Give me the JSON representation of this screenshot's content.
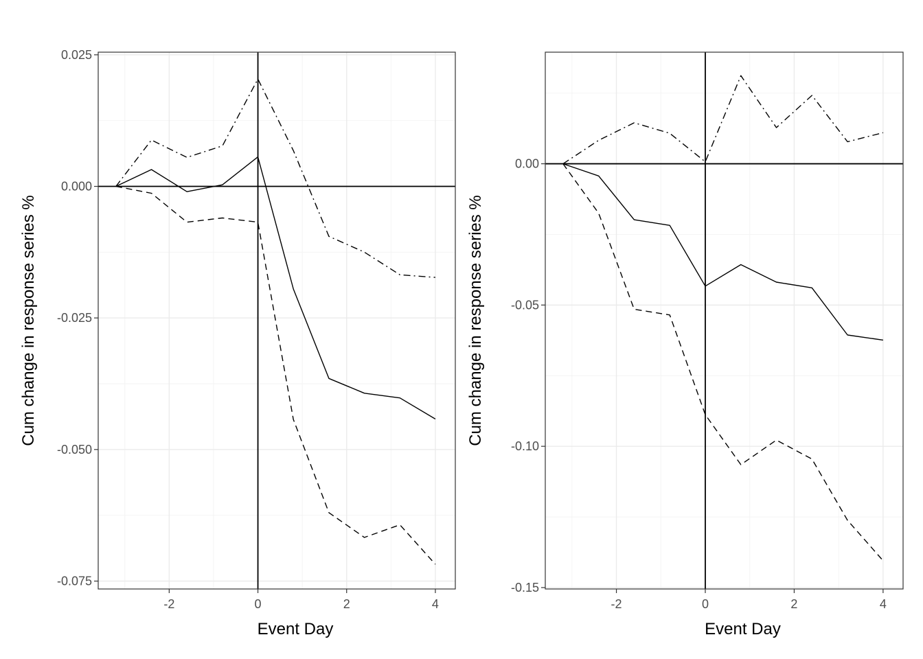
{
  "chart_data": [
    {
      "type": "line",
      "xlabel": "Event Day",
      "ylabel": "Cum change in response series %",
      "xlim": [
        -3.6,
        4.45
      ],
      "ylim": [
        -0.0765,
        0.0255
      ],
      "x_ticks": [
        -2,
        0,
        2,
        4
      ],
      "x_tick_labels": [
        "-2",
        "0",
        "2",
        "4"
      ],
      "y_ticks": [
        0.025,
        0.0,
        -0.025,
        -0.05,
        -0.075
      ],
      "y_tick_labels": [
        "0.025",
        "0.000",
        "-0.025",
        "-0.050",
        "-0.075"
      ],
      "grid": true,
      "reference_lines": {
        "x": 0,
        "y": 0
      },
      "x": [
        -3.2,
        -2.4,
        -1.6,
        -0.8,
        0,
        0.8,
        1.6,
        2.4,
        3.2,
        4.0
      ],
      "series": [
        {
          "style": "solid",
          "values": [
            0.0,
            0.0032,
            -0.001,
            0.0003,
            0.0056,
            -0.0195,
            -0.0365,
            -0.0393,
            -0.0402,
            -0.0442
          ]
        },
        {
          "style": "dashdot",
          "values": [
            0.0,
            0.0088,
            0.0055,
            0.0077,
            0.0204,
            0.0068,
            -0.0095,
            -0.0125,
            -0.0168,
            -0.0173
          ]
        },
        {
          "style": "dashed",
          "values": [
            0.0,
            -0.0013,
            -0.0068,
            -0.006,
            -0.0068,
            -0.0443,
            -0.062,
            -0.0667,
            -0.0643,
            -0.0718
          ]
        }
      ]
    },
    {
      "type": "line",
      "xlabel": "Event Day",
      "ylabel": "Cum change in response series %",
      "xlim": [
        -3.6,
        4.45
      ],
      "ylim": [
        -0.1505,
        0.0395
      ],
      "x_ticks": [
        -2,
        0,
        2,
        4
      ],
      "x_tick_labels": [
        "-2",
        "0",
        "2",
        "4"
      ],
      "y_ticks": [
        0.0,
        -0.05,
        -0.1,
        -0.15
      ],
      "y_tick_labels": [
        "0.00",
        "-0.05",
        "-0.10",
        "-0.15"
      ],
      "grid": true,
      "reference_lines": {
        "x": 0,
        "y": 0
      },
      "x": [
        -3.2,
        -2.4,
        -1.6,
        -0.8,
        0,
        0.8,
        1.6,
        2.4,
        3.2,
        4.0
      ],
      "series": [
        {
          "style": "solid",
          "values": [
            0.0,
            -0.0043,
            -0.0198,
            -0.0218,
            -0.0433,
            -0.0357,
            -0.0419,
            -0.0439,
            -0.0606,
            -0.0624
          ]
        },
        {
          "style": "dashdot",
          "values": [
            0.0,
            0.0083,
            0.0145,
            0.0108,
            0.0007,
            0.0312,
            0.0128,
            0.0242,
            0.0078,
            0.011
          ]
        },
        {
          "style": "dashed",
          "values": [
            0.0,
            -0.0175,
            -0.0515,
            -0.0535,
            -0.0888,
            -0.1065,
            -0.0978,
            -0.1045,
            -0.1262,
            -0.1405
          ]
        }
      ]
    }
  ]
}
